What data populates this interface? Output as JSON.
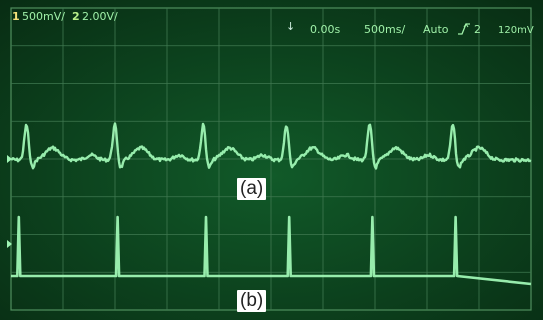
{
  "status_bar": {
    "ch1_number": "1",
    "ch1_scale": "500mV/",
    "ch2_number": "2",
    "ch2_scale": "2.00V/",
    "trigger_marker": "↓",
    "time_offset": "0.00s",
    "time_scale": "500ms/",
    "trigger_mode": "Auto",
    "trigger_source_icon": "trigger-edge-icon",
    "trigger_source": "2",
    "trigger_level": "120mV"
  },
  "labels": {
    "a": "(a)",
    "b": "(b)"
  },
  "colors": {
    "screen": "#0c3f1c",
    "grid": "#3f7850",
    "trace": "#9ff5b4",
    "status_text": "#9ff0a8",
    "ch1_number": "#f5e27a",
    "ch2_number": "#b9f08a"
  },
  "traces": {
    "trace_a": {
      "name": "ecg",
      "beat_times": [
        0.03,
        0.2,
        0.37,
        0.53,
        0.69,
        0.85
      ]
    },
    "trace_b": {
      "name": "pulse",
      "pulse_times": [
        0.015,
        0.205,
        0.375,
        0.535,
        0.695,
        0.855
      ]
    }
  }
}
